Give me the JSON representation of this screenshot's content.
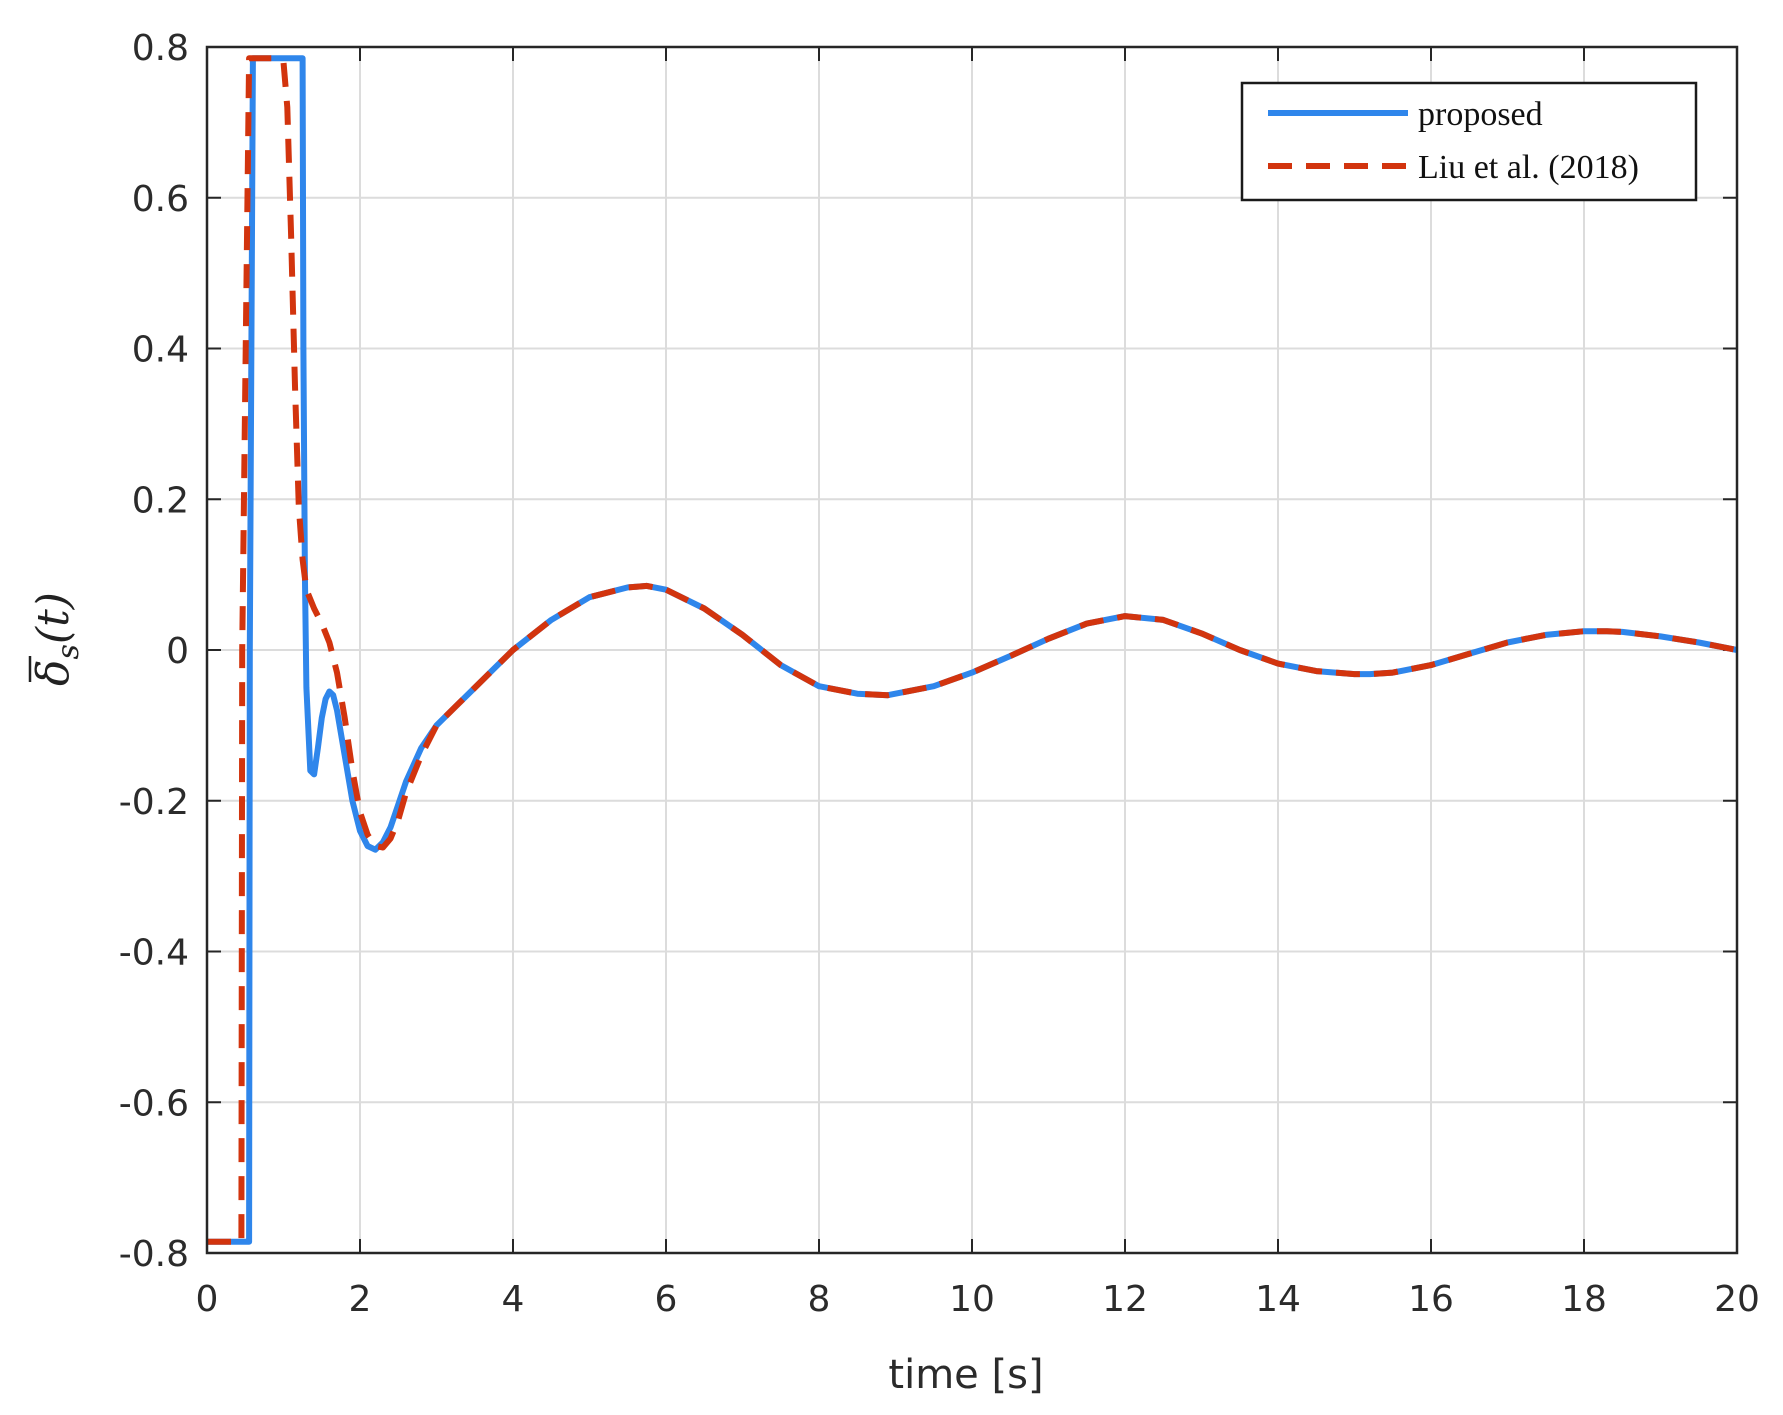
{
  "chart_data": {
    "type": "line",
    "xlabel": "time [s]",
    "ylabel": "δ̄s(t)",
    "ylabel_parts": {
      "main": "δ",
      "sub": "s",
      "arg": "(t)"
    },
    "xlim": [
      0,
      20
    ],
    "ylim": [
      -0.8,
      0.8
    ],
    "xticks": [
      "0",
      "2",
      "4",
      "6",
      "8",
      "10",
      "12",
      "14",
      "16",
      "18",
      "20"
    ],
    "yticks": [
      "-0.8",
      "-0.6",
      "-0.4",
      "-0.2",
      "0",
      "0.2",
      "0.4",
      "0.6",
      "0.8"
    ],
    "grid": true,
    "legend_position": "top-right",
    "series": [
      {
        "name": "proposed",
        "color": "#2f86eb",
        "dash": "solid",
        "x": [
          0,
          0.55,
          0.56,
          0.6,
          1.0,
          1.25,
          1.26,
          1.28,
          1.3,
          1.35,
          1.4,
          1.45,
          1.5,
          1.55,
          1.6,
          1.65,
          1.7,
          1.8,
          1.9,
          2.0,
          2.1,
          2.2,
          2.3,
          2.4,
          2.5,
          2.6,
          2.8,
          3.0,
          3.25,
          3.5,
          3.75,
          4.0,
          4.5,
          5.0,
          5.5,
          5.75,
          6.0,
          6.5,
          7.0,
          7.5,
          8.0,
          8.5,
          8.9,
          9.5,
          10.0,
          10.5,
          11.0,
          11.5,
          12.0,
          12.5,
          13.0,
          13.5,
          14.0,
          14.5,
          15.0,
          15.2,
          15.5,
          16.0,
          16.5,
          17.0,
          17.5,
          18.0,
          18.3,
          18.5,
          19.0,
          19.5,
          20.0
        ],
        "y": [
          -0.785,
          -0.785,
          0.0,
          0.785,
          0.785,
          0.785,
          0.4,
          0.1,
          -0.05,
          -0.16,
          -0.165,
          -0.13,
          -0.09,
          -0.065,
          -0.055,
          -0.06,
          -0.08,
          -0.14,
          -0.2,
          -0.24,
          -0.26,
          -0.265,
          -0.255,
          -0.235,
          -0.205,
          -0.175,
          -0.13,
          -0.1,
          -0.075,
          -0.05,
          -0.025,
          0.0,
          0.04,
          0.07,
          0.083,
          0.085,
          0.08,
          0.055,
          0.02,
          -0.02,
          -0.048,
          -0.058,
          -0.06,
          -0.048,
          -0.03,
          -0.008,
          0.015,
          0.035,
          0.045,
          0.04,
          0.022,
          0.0,
          -0.018,
          -0.028,
          -0.032,
          -0.032,
          -0.03,
          -0.02,
          -0.005,
          0.01,
          0.02,
          0.025,
          0.025,
          0.024,
          0.018,
          0.01,
          0.0
        ]
      },
      {
        "name": "Liu et al. (2018)",
        "color": "#d2340e",
        "dash": "dashed",
        "x": [
          0,
          0.45,
          0.46,
          0.55,
          0.9,
          1.0,
          1.05,
          1.1,
          1.15,
          1.2,
          1.25,
          1.3,
          1.4,
          1.5,
          1.6,
          1.7,
          1.8,
          1.9,
          2.0,
          2.1,
          2.2,
          2.3,
          2.4,
          2.5,
          2.6,
          2.8,
          3.0,
          3.25,
          3.5,
          3.75,
          4.0,
          4.5,
          5.0,
          5.5,
          5.75,
          6.0,
          6.5,
          7.0,
          7.5,
          8.0,
          8.5,
          8.9,
          9.5,
          10.0,
          10.5,
          11.0,
          11.5,
          12.0,
          12.5,
          13.0,
          13.5,
          14.0,
          14.5,
          15.0,
          15.2,
          15.5,
          16.0,
          16.5,
          17.0,
          17.5,
          18.0,
          18.3,
          18.5,
          19.0,
          19.5,
          20.0
        ],
        "y": [
          -0.785,
          -0.785,
          0.0,
          0.785,
          0.785,
          0.78,
          0.72,
          0.55,
          0.35,
          0.19,
          0.12,
          0.08,
          0.055,
          0.035,
          0.01,
          -0.03,
          -0.09,
          -0.16,
          -0.215,
          -0.245,
          -0.26,
          -0.262,
          -0.25,
          -0.225,
          -0.19,
          -0.14,
          -0.1,
          -0.075,
          -0.05,
          -0.025,
          0.0,
          0.04,
          0.07,
          0.083,
          0.085,
          0.08,
          0.055,
          0.02,
          -0.02,
          -0.048,
          -0.058,
          -0.06,
          -0.048,
          -0.03,
          -0.008,
          0.015,
          0.035,
          0.045,
          0.04,
          0.022,
          0.0,
          -0.018,
          -0.028,
          -0.032,
          -0.032,
          -0.03,
          -0.02,
          -0.005,
          0.01,
          0.02,
          0.025,
          0.025,
          0.024,
          0.018,
          0.01,
          0.0
        ]
      }
    ]
  }
}
